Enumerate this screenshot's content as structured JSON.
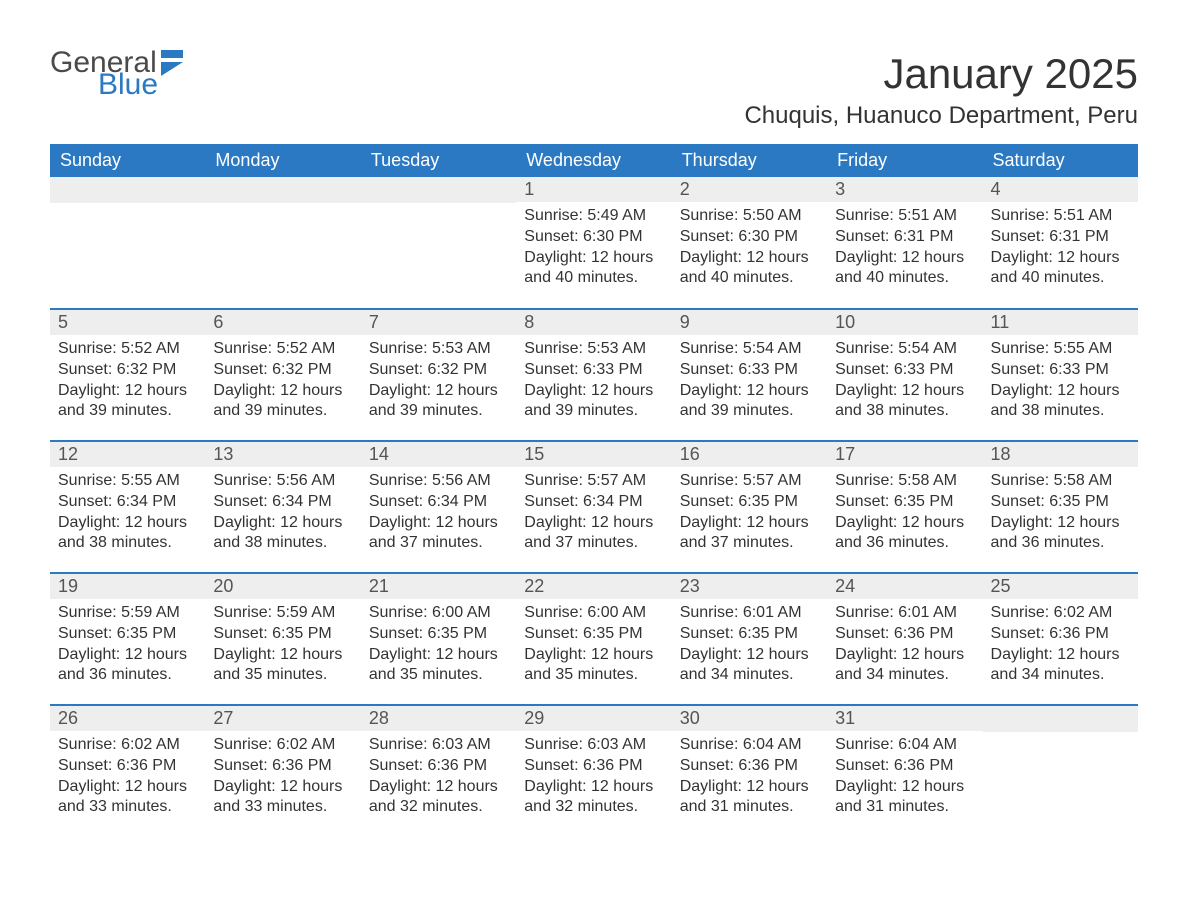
{
  "logo": {
    "word1": "General",
    "word2": "Blue",
    "text_color": "#4a4a4a",
    "accent_color": "#2b79c2"
  },
  "header": {
    "month_title": "January 2025",
    "location": "Chuquis, Huanuco Department, Peru"
  },
  "calendar": {
    "type": "table",
    "header_bg": "#2b79c2",
    "header_fg": "#ffffff",
    "daynum_bg": "#eeeeee",
    "row_border_color": "#2b79c2",
    "background_color": "#ffffff",
    "text_color": "#333333",
    "columns": [
      "Sunday",
      "Monday",
      "Tuesday",
      "Wednesday",
      "Thursday",
      "Friday",
      "Saturday"
    ],
    "weeks": [
      [
        null,
        null,
        null,
        {
          "n": "1",
          "sunrise": "Sunrise: 5:49 AM",
          "sunset": "Sunset: 6:30 PM",
          "dl1": "Daylight: 12 hours",
          "dl2": "and 40 minutes."
        },
        {
          "n": "2",
          "sunrise": "Sunrise: 5:50 AM",
          "sunset": "Sunset: 6:30 PM",
          "dl1": "Daylight: 12 hours",
          "dl2": "and 40 minutes."
        },
        {
          "n": "3",
          "sunrise": "Sunrise: 5:51 AM",
          "sunset": "Sunset: 6:31 PM",
          "dl1": "Daylight: 12 hours",
          "dl2": "and 40 minutes."
        },
        {
          "n": "4",
          "sunrise": "Sunrise: 5:51 AM",
          "sunset": "Sunset: 6:31 PM",
          "dl1": "Daylight: 12 hours",
          "dl2": "and 40 minutes."
        }
      ],
      [
        {
          "n": "5",
          "sunrise": "Sunrise: 5:52 AM",
          "sunset": "Sunset: 6:32 PM",
          "dl1": "Daylight: 12 hours",
          "dl2": "and 39 minutes."
        },
        {
          "n": "6",
          "sunrise": "Sunrise: 5:52 AM",
          "sunset": "Sunset: 6:32 PM",
          "dl1": "Daylight: 12 hours",
          "dl2": "and 39 minutes."
        },
        {
          "n": "7",
          "sunrise": "Sunrise: 5:53 AM",
          "sunset": "Sunset: 6:32 PM",
          "dl1": "Daylight: 12 hours",
          "dl2": "and 39 minutes."
        },
        {
          "n": "8",
          "sunrise": "Sunrise: 5:53 AM",
          "sunset": "Sunset: 6:33 PM",
          "dl1": "Daylight: 12 hours",
          "dl2": "and 39 minutes."
        },
        {
          "n": "9",
          "sunrise": "Sunrise: 5:54 AM",
          "sunset": "Sunset: 6:33 PM",
          "dl1": "Daylight: 12 hours",
          "dl2": "and 39 minutes."
        },
        {
          "n": "10",
          "sunrise": "Sunrise: 5:54 AM",
          "sunset": "Sunset: 6:33 PM",
          "dl1": "Daylight: 12 hours",
          "dl2": "and 38 minutes."
        },
        {
          "n": "11",
          "sunrise": "Sunrise: 5:55 AM",
          "sunset": "Sunset: 6:33 PM",
          "dl1": "Daylight: 12 hours",
          "dl2": "and 38 minutes."
        }
      ],
      [
        {
          "n": "12",
          "sunrise": "Sunrise: 5:55 AM",
          "sunset": "Sunset: 6:34 PM",
          "dl1": "Daylight: 12 hours",
          "dl2": "and 38 minutes."
        },
        {
          "n": "13",
          "sunrise": "Sunrise: 5:56 AM",
          "sunset": "Sunset: 6:34 PM",
          "dl1": "Daylight: 12 hours",
          "dl2": "and 38 minutes."
        },
        {
          "n": "14",
          "sunrise": "Sunrise: 5:56 AM",
          "sunset": "Sunset: 6:34 PM",
          "dl1": "Daylight: 12 hours",
          "dl2": "and 37 minutes."
        },
        {
          "n": "15",
          "sunrise": "Sunrise: 5:57 AM",
          "sunset": "Sunset: 6:34 PM",
          "dl1": "Daylight: 12 hours",
          "dl2": "and 37 minutes."
        },
        {
          "n": "16",
          "sunrise": "Sunrise: 5:57 AM",
          "sunset": "Sunset: 6:35 PM",
          "dl1": "Daylight: 12 hours",
          "dl2": "and 37 minutes."
        },
        {
          "n": "17",
          "sunrise": "Sunrise: 5:58 AM",
          "sunset": "Sunset: 6:35 PM",
          "dl1": "Daylight: 12 hours",
          "dl2": "and 36 minutes."
        },
        {
          "n": "18",
          "sunrise": "Sunrise: 5:58 AM",
          "sunset": "Sunset: 6:35 PM",
          "dl1": "Daylight: 12 hours",
          "dl2": "and 36 minutes."
        }
      ],
      [
        {
          "n": "19",
          "sunrise": "Sunrise: 5:59 AM",
          "sunset": "Sunset: 6:35 PM",
          "dl1": "Daylight: 12 hours",
          "dl2": "and 36 minutes."
        },
        {
          "n": "20",
          "sunrise": "Sunrise: 5:59 AM",
          "sunset": "Sunset: 6:35 PM",
          "dl1": "Daylight: 12 hours",
          "dl2": "and 35 minutes."
        },
        {
          "n": "21",
          "sunrise": "Sunrise: 6:00 AM",
          "sunset": "Sunset: 6:35 PM",
          "dl1": "Daylight: 12 hours",
          "dl2": "and 35 minutes."
        },
        {
          "n": "22",
          "sunrise": "Sunrise: 6:00 AM",
          "sunset": "Sunset: 6:35 PM",
          "dl1": "Daylight: 12 hours",
          "dl2": "and 35 minutes."
        },
        {
          "n": "23",
          "sunrise": "Sunrise: 6:01 AM",
          "sunset": "Sunset: 6:35 PM",
          "dl1": "Daylight: 12 hours",
          "dl2": "and 34 minutes."
        },
        {
          "n": "24",
          "sunrise": "Sunrise: 6:01 AM",
          "sunset": "Sunset: 6:36 PM",
          "dl1": "Daylight: 12 hours",
          "dl2": "and 34 minutes."
        },
        {
          "n": "25",
          "sunrise": "Sunrise: 6:02 AM",
          "sunset": "Sunset: 6:36 PM",
          "dl1": "Daylight: 12 hours",
          "dl2": "and 34 minutes."
        }
      ],
      [
        {
          "n": "26",
          "sunrise": "Sunrise: 6:02 AM",
          "sunset": "Sunset: 6:36 PM",
          "dl1": "Daylight: 12 hours",
          "dl2": "and 33 minutes."
        },
        {
          "n": "27",
          "sunrise": "Sunrise: 6:02 AM",
          "sunset": "Sunset: 6:36 PM",
          "dl1": "Daylight: 12 hours",
          "dl2": "and 33 minutes."
        },
        {
          "n": "28",
          "sunrise": "Sunrise: 6:03 AM",
          "sunset": "Sunset: 6:36 PM",
          "dl1": "Daylight: 12 hours",
          "dl2": "and 32 minutes."
        },
        {
          "n": "29",
          "sunrise": "Sunrise: 6:03 AM",
          "sunset": "Sunset: 6:36 PM",
          "dl1": "Daylight: 12 hours",
          "dl2": "and 32 minutes."
        },
        {
          "n": "30",
          "sunrise": "Sunrise: 6:04 AM",
          "sunset": "Sunset: 6:36 PM",
          "dl1": "Daylight: 12 hours",
          "dl2": "and 31 minutes."
        },
        {
          "n": "31",
          "sunrise": "Sunrise: 6:04 AM",
          "sunset": "Sunset: 6:36 PM",
          "dl1": "Daylight: 12 hours",
          "dl2": "and 31 minutes."
        },
        null
      ]
    ]
  }
}
